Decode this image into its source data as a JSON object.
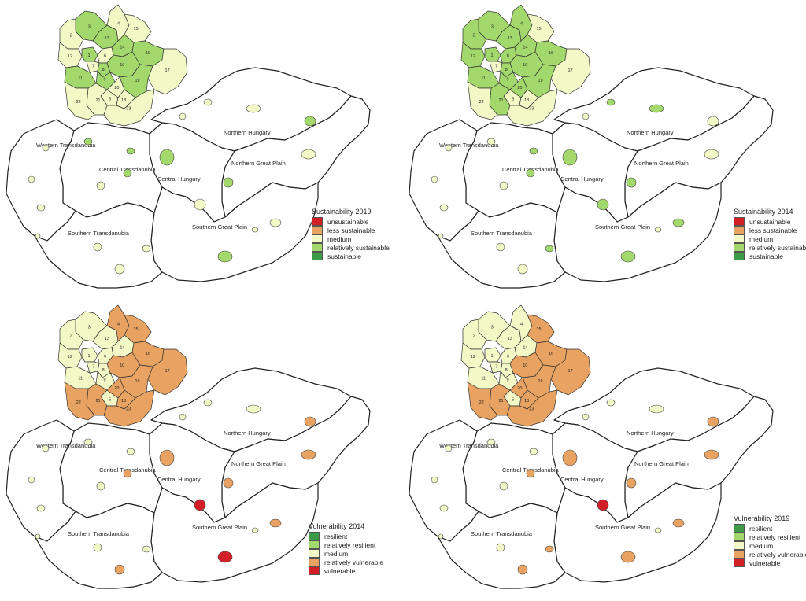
{
  "colors": {
    "dark_green": "#3d9a47",
    "light_green": "#a2d86c",
    "pale_yellow": "#f2f8c6",
    "orange": "#e8a261",
    "red": "#d32028"
  },
  "region_labels": {
    "northern_hungary": "Northern Hungary",
    "western_transdanubia": "Western Transdanubia",
    "central_transdanubia": "Central Transdanubia",
    "central_hungary": "Central Hungary",
    "northern_great_plain": "Northern Great Plain",
    "southern_transdanubia": "Southern Transdanubia",
    "southern_great_plain": "Southern Great Plain"
  },
  "district_numbers": [
    "1",
    "2",
    "3",
    "4",
    "5",
    "6",
    "7",
    "8",
    "9",
    "10",
    "11",
    "12",
    "13",
    "14",
    "15",
    "16",
    "17",
    "18",
    "19",
    "20",
    "21",
    "22",
    "23"
  ],
  "panels": [
    {
      "id": "sustainability-2019",
      "legend": {
        "title": "Sustainability 2019",
        "items": [
          {
            "label": "unsustainable",
            "color": "#d32028"
          },
          {
            "label": "less sustainable",
            "color": "#e8a261"
          },
          {
            "label": "medium",
            "color": "#f2f8c6"
          },
          {
            "label": "relatively sustainable",
            "color": "#a2d86c"
          },
          {
            "label": "sustainable",
            "color": "#3d9a47"
          }
        ]
      },
      "district_fill": {
        "1": "#a2d86c",
        "2": "#f2f8c6",
        "3": "#a2d86c",
        "4": "#f2f8c6",
        "5": "#f2f8c6",
        "6": "#f2f8c6",
        "7": "#f2f8c6",
        "8": "#a2d86c",
        "9": "#a2d86c",
        "10": "#a2d86c",
        "11": "#a2d86c",
        "12": "#f2f8c6",
        "13": "#a2d86c",
        "14": "#a2d86c",
        "15": "#f2f8c6",
        "16": "#a2d86c",
        "17": "#f2f8c6",
        "18": "#f2f8c6",
        "19": "#a2d86c",
        "20": "#f2f8c6",
        "21": "#f2f8c6",
        "22": "#f2f8c6",
        "23": "#f2f8c6"
      },
      "town_fill": {
        "miskolc": "#f2f8c6",
        "eger": "#f2f8c6",
        "salgotarjan": "#f2f8c6",
        "nyiregyhaza": "#a2d86c",
        "debrecen": "#f2f8c6",
        "szolnok": "#a2d86c",
        "bekescsaba": "#f2f8c6",
        "szeged": "#a2d86c",
        "kecskemet": "#f2f8c6",
        "szombathely": "#f2f8c6",
        "zalaegerszeg": "#f2f8c6",
        "sopron": "#f2f8c6",
        "gyor": "#a2d86c",
        "tatabanya": "#a2d86c",
        "veszprem": "#f2f8c6",
        "szekesfehervar": "#a2d86c",
        "kaposvar": "#f2f8c6",
        "szekszard": "#f2f8c6",
        "pecs": "#f2f8c6",
        "budapest": "#a2d86c",
        "nagykanizsa": "#f2f8c6",
        "hodmezovasarhely": "#f2f8c6"
      }
    },
    {
      "id": "sustainability-2014",
      "legend": {
        "title": "Sustainability 2014",
        "items": [
          {
            "label": "unsustainable",
            "color": "#d32028"
          },
          {
            "label": "less sustainable",
            "color": "#e8a261"
          },
          {
            "label": "medium",
            "color": "#f2f8c6"
          },
          {
            "label": "relatively sustainable",
            "color": "#a2d86c"
          },
          {
            "label": "sustainable",
            "color": "#3d9a47"
          }
        ]
      },
      "district_fill": {
        "1": "#a2d86c",
        "2": "#a2d86c",
        "3": "#a2d86c",
        "4": "#a2d86c",
        "5": "#f2f8c6",
        "6": "#a2d86c",
        "7": "#f2f8c6",
        "8": "#a2d86c",
        "9": "#a2d86c",
        "10": "#a2d86c",
        "11": "#a2d86c",
        "12": "#a2d86c",
        "13": "#a2d86c",
        "14": "#a2d86c",
        "15": "#f2f8c6",
        "16": "#a2d86c",
        "17": "#f2f8c6",
        "18": "#f2f8c6",
        "19": "#a2d86c",
        "20": "#a2d86c",
        "21": "#a2d86c",
        "22": "#f2f8c6",
        "23": "#f2f8c6"
      },
      "town_fill": {
        "miskolc": "#a2d86c",
        "eger": "#a2d86c",
        "salgotarjan": "#f2f8c6",
        "nyiregyhaza": "#f2f8c6",
        "debrecen": "#f2f8c6",
        "szolnok": "#a2d86c",
        "bekescsaba": "#a2d86c",
        "szeged": "#a2d86c",
        "kecskemet": "#a2d86c",
        "szombathely": "#f2f8c6",
        "zalaegerszeg": "#f2f8c6",
        "sopron": "#f2f8c6",
        "gyor": "#f2f8c6",
        "tatabanya": "#a2d86c",
        "veszprem": "#f2f8c6",
        "szekesfehervar": "#a2d86c",
        "kaposvar": "#f2f8c6",
        "szekszard": "#a2d86c",
        "pecs": "#f2f8c6",
        "budapest": "#a2d86c",
        "nagykanizsa": "#f2f8c6",
        "hodmezovasarhely": "#f2f8c6"
      }
    },
    {
      "id": "vulnerability-2014",
      "legend": {
        "title": "Vulnerability 2014",
        "items": [
          {
            "label": "resilient",
            "color": "#3d9a47"
          },
          {
            "label": "relatively resilient",
            "color": "#a2d86c"
          },
          {
            "label": "medium",
            "color": "#f2f8c6"
          },
          {
            "label": "relatively vulnerable",
            "color": "#e8a261"
          },
          {
            "label": "vulnerable",
            "color": "#d32028"
          }
        ]
      },
      "district_fill": {
        "1": "#f2f8c6",
        "2": "#f2f8c6",
        "3": "#f2f8c6",
        "4": "#e8a261",
        "5": "#f2f8c6",
        "6": "#f2f8c6",
        "7": "#f2f8c6",
        "8": "#f2f8c6",
        "9": "#f2f8c6",
        "10": "#e8a261",
        "11": "#f2f8c6",
        "12": "#f2f8c6",
        "13": "#f2f8c6",
        "14": "#f2f8c6",
        "15": "#e8a261",
        "16": "#e8a261",
        "17": "#e8a261",
        "18": "#e8a261",
        "19": "#e8a261",
        "20": "#e8a261",
        "21": "#e8a261",
        "22": "#e8a261",
        "23": "#e8a261"
      },
      "town_fill": {
        "miskolc": "#f2f8c6",
        "eger": "#f2f8c6",
        "salgotarjan": "#f2f8c6",
        "nyiregyhaza": "#e8a261",
        "debrecen": "#e8a261",
        "szolnok": "#e8a261",
        "bekescsaba": "#e8a261",
        "szeged": "#d32028",
        "kecskemet": "#d32028",
        "szombathely": "#f2f8c6",
        "zalaegerszeg": "#f2f8c6",
        "sopron": "#f2f8c6",
        "gyor": "#f2f8c6",
        "tatabanya": "#f2f8c6",
        "veszprem": "#f2f8c6",
        "szekesfehervar": "#e8a261",
        "kaposvar": "#f2f8c6",
        "szekszard": "#f2f8c6",
        "pecs": "#e8a261",
        "budapest": "#e8a261",
        "nagykanizsa": "#f2f8c6",
        "hodmezovasarhely": "#f2f8c6"
      }
    },
    {
      "id": "vulnerability-2019",
      "legend": {
        "title": "Vulnerability 2019",
        "items": [
          {
            "label": "resilient",
            "color": "#3d9a47"
          },
          {
            "label": "relatively resilient",
            "color": "#a2d86c"
          },
          {
            "label": "medium",
            "color": "#f2f8c6"
          },
          {
            "label": "relatively vulnerable",
            "color": "#e8a261"
          },
          {
            "label": "vulnerable",
            "color": "#d32028"
          }
        ]
      },
      "district_fill": {
        "1": "#f2f8c6",
        "2": "#f2f8c6",
        "3": "#f2f8c6",
        "4": "#f2f8c6",
        "5": "#f2f8c6",
        "6": "#f2f8c6",
        "7": "#f2f8c6",
        "8": "#f2f8c6",
        "9": "#f2f8c6",
        "10": "#e8a261",
        "11": "#f2f8c6",
        "12": "#f2f8c6",
        "13": "#f2f8c6",
        "14": "#f2f8c6",
        "15": "#e8a261",
        "16": "#e8a261",
        "17": "#e8a261",
        "18": "#e8a261",
        "19": "#e8a261",
        "20": "#e8a261",
        "21": "#e8a261",
        "22": "#e8a261",
        "23": "#e8a261"
      },
      "town_fill": {
        "miskolc": "#f2f8c6",
        "eger": "#f2f8c6",
        "salgotarjan": "#f2f8c6",
        "nyiregyhaza": "#e8a261",
        "debrecen": "#e8a261",
        "szolnok": "#e8a261",
        "bekescsaba": "#e8a261",
        "szeged": "#e8a261",
        "kecskemet": "#d32028",
        "szombathely": "#f2f8c6",
        "zalaegerszeg": "#f2f8c6",
        "sopron": "#f2f8c6",
        "gyor": "#f2f8c6",
        "tatabanya": "#f2f8c6",
        "veszprem": "#f2f8c6",
        "szekesfehervar": "#e8a261",
        "kaposvar": "#f2f8c6",
        "szekszard": "#e8a261",
        "pecs": "#e8a261",
        "budapest": "#e8a261",
        "nagykanizsa": "#f2f8c6",
        "hodmezovasarhely": "#f2f8c6"
      }
    }
  ]
}
